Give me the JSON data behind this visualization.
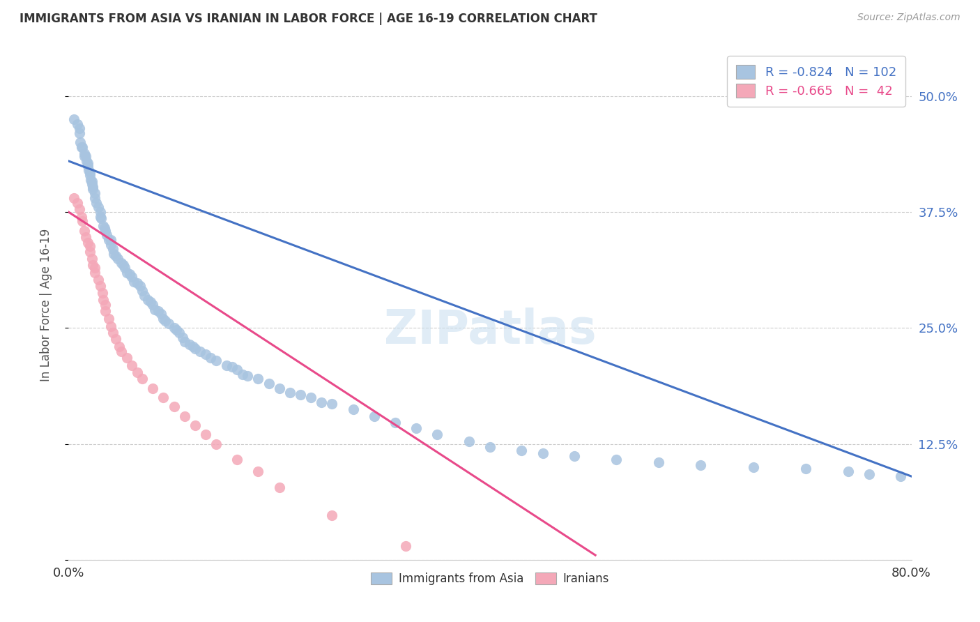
{
  "title": "IMMIGRANTS FROM ASIA VS IRANIAN IN LABOR FORCE | AGE 16-19 CORRELATION CHART",
  "source": "Source: ZipAtlas.com",
  "ylabel": "In Labor Force | Age 16-19",
  "xlim": [
    0.0,
    0.8
  ],
  "ylim": [
    0.0,
    0.55
  ],
  "ytick_positions": [
    0.0,
    0.125,
    0.25,
    0.375,
    0.5
  ],
  "yticklabels_right": [
    "",
    "12.5%",
    "25.0%",
    "37.5%",
    "50.0%"
  ],
  "blue_R": -0.824,
  "blue_N": 102,
  "pink_R": -0.665,
  "pink_N": 42,
  "blue_color": "#a8c4e0",
  "pink_color": "#f4a8b8",
  "blue_line_color": "#4472c4",
  "pink_line_color": "#e84a8a",
  "watermark": "ZIPatlas",
  "blue_scatter_x": [
    0.005,
    0.008,
    0.01,
    0.01,
    0.011,
    0.012,
    0.013,
    0.015,
    0.015,
    0.016,
    0.017,
    0.018,
    0.018,
    0.019,
    0.02,
    0.02,
    0.021,
    0.022,
    0.022,
    0.023,
    0.023,
    0.025,
    0.025,
    0.026,
    0.028,
    0.03,
    0.03,
    0.031,
    0.033,
    0.034,
    0.035,
    0.036,
    0.038,
    0.04,
    0.04,
    0.042,
    0.043,
    0.045,
    0.047,
    0.05,
    0.052,
    0.053,
    0.055,
    0.058,
    0.06,
    0.062,
    0.065,
    0.068,
    0.07,
    0.072,
    0.075,
    0.078,
    0.08,
    0.082,
    0.085,
    0.088,
    0.09,
    0.092,
    0.095,
    0.1,
    0.102,
    0.105,
    0.108,
    0.11,
    0.115,
    0.118,
    0.12,
    0.125,
    0.13,
    0.135,
    0.14,
    0.15,
    0.155,
    0.16,
    0.165,
    0.17,
    0.18,
    0.19,
    0.2,
    0.21,
    0.22,
    0.23,
    0.24,
    0.25,
    0.27,
    0.29,
    0.31,
    0.33,
    0.35,
    0.38,
    0.4,
    0.43,
    0.45,
    0.48,
    0.52,
    0.56,
    0.6,
    0.65,
    0.7,
    0.74,
    0.76,
    0.79
  ],
  "blue_scatter_y": [
    0.475,
    0.47,
    0.465,
    0.46,
    0.45,
    0.445,
    0.445,
    0.438,
    0.435,
    0.435,
    0.43,
    0.428,
    0.425,
    0.42,
    0.418,
    0.415,
    0.41,
    0.408,
    0.405,
    0.402,
    0.4,
    0.395,
    0.39,
    0.385,
    0.38,
    0.375,
    0.37,
    0.368,
    0.36,
    0.358,
    0.355,
    0.35,
    0.345,
    0.345,
    0.34,
    0.335,
    0.33,
    0.328,
    0.325,
    0.32,
    0.318,
    0.315,
    0.31,
    0.308,
    0.305,
    0.3,
    0.298,
    0.295,
    0.29,
    0.285,
    0.28,
    0.278,
    0.275,
    0.27,
    0.268,
    0.265,
    0.26,
    0.258,
    0.255,
    0.25,
    0.248,
    0.245,
    0.24,
    0.235,
    0.232,
    0.23,
    0.228,
    0.225,
    0.222,
    0.218,
    0.215,
    0.21,
    0.208,
    0.205,
    0.2,
    0.198,
    0.195,
    0.19,
    0.185,
    0.18,
    0.178,
    0.175,
    0.17,
    0.168,
    0.162,
    0.155,
    0.148,
    0.142,
    0.135,
    0.128,
    0.122,
    0.118,
    0.115,
    0.112,
    0.108,
    0.105,
    0.102,
    0.1,
    0.098,
    0.095,
    0.092,
    0.09
  ],
  "pink_scatter_x": [
    0.005,
    0.008,
    0.01,
    0.012,
    0.013,
    0.015,
    0.016,
    0.018,
    0.02,
    0.02,
    0.022,
    0.023,
    0.025,
    0.025,
    0.028,
    0.03,
    0.032,
    0.033,
    0.035,
    0.035,
    0.038,
    0.04,
    0.042,
    0.045,
    0.048,
    0.05,
    0.055,
    0.06,
    0.065,
    0.07,
    0.08,
    0.09,
    0.1,
    0.11,
    0.12,
    0.13,
    0.14,
    0.16,
    0.18,
    0.2,
    0.25,
    0.32
  ],
  "pink_scatter_y": [
    0.39,
    0.385,
    0.378,
    0.37,
    0.365,
    0.355,
    0.348,
    0.342,
    0.338,
    0.332,
    0.325,
    0.318,
    0.315,
    0.31,
    0.302,
    0.295,
    0.288,
    0.28,
    0.275,
    0.268,
    0.26,
    0.252,
    0.245,
    0.238,
    0.23,
    0.225,
    0.218,
    0.21,
    0.202,
    0.195,
    0.185,
    0.175,
    0.165,
    0.155,
    0.145,
    0.135,
    0.125,
    0.108,
    0.095,
    0.078,
    0.048,
    0.015
  ],
  "blue_line_x": [
    0.0,
    0.8
  ],
  "blue_line_y": [
    0.43,
    0.09
  ],
  "pink_line_x": [
    0.0,
    0.5
  ],
  "pink_line_y": [
    0.375,
    0.005
  ],
  "background_color": "#ffffff",
  "grid_color": "#cccccc",
  "title_color": "#333333",
  "right_tick_color": "#4472c4",
  "figsize": [
    14.06,
    8.92
  ],
  "dpi": 100
}
